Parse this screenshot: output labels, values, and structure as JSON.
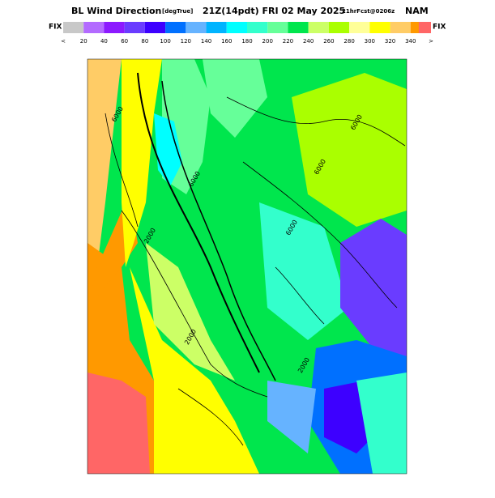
{
  "header": {
    "title": "BL Wind Direction",
    "units": "[degTrue]",
    "time": "21Z(14pdt) FRI 02 May 2025",
    "forecast": "21hrFcst@0206z",
    "model": "NAM"
  },
  "legend": {
    "left": "FIX",
    "right": "FIX",
    "colors": [
      "#c8c8c8",
      "#b36bff",
      "#8c1aff",
      "#6a3cff",
      "#3d00ff",
      "#0070ff",
      "#66b3ff",
      "#00b4ff",
      "#00ffff",
      "#33ffcc",
      "#66ff99",
      "#00e64d",
      "#ccff66",
      "#aaff00",
      "#ffff99",
      "#ffff00",
      "#ffcc66",
      "#ff9900"
    ],
    "extra_color": "#ff6666",
    "labels": [
      "<",
      "20",
      "40",
      "60",
      "80",
      "100",
      "120",
      "140",
      "160",
      "180",
      "200",
      "220",
      "240",
      "260",
      "280",
      "300",
      "320",
      "340",
      ">"
    ]
  },
  "map": {
    "contour_labels": [
      "6000",
      "2000",
      "6000",
      "6000",
      "2000",
      "6000",
      "6000",
      "2000"
    ]
  }
}
